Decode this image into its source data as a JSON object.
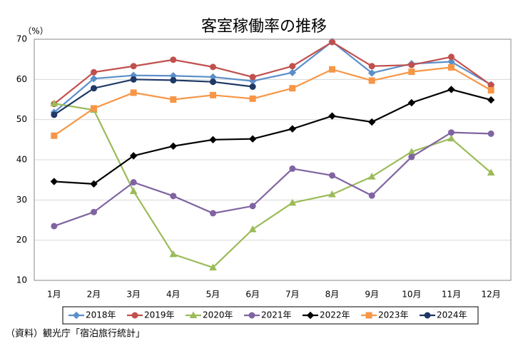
{
  "chart_data": {
    "type": "line",
    "title": "客室稼働率の推移",
    "y_unit": "（%）",
    "source": "（資料）観光庁「宿泊旅行統計」",
    "categories": [
      "1月",
      "2月",
      "3月",
      "4月",
      "5月",
      "6月",
      "7月",
      "8月",
      "9月",
      "10月",
      "11月",
      "12月"
    ],
    "ylim": [
      10,
      70
    ],
    "yticks": [
      10,
      20,
      30,
      40,
      50,
      60,
      70
    ],
    "grid": true,
    "legend": "bottom",
    "series": [
      {
        "name": "2018年",
        "color": "#5b8fc9",
        "marker": "diamond",
        "values": [
          51.8,
          60.2,
          61.0,
          60.9,
          60.6,
          59.6,
          61.7,
          69.4,
          61.6,
          63.9,
          64.4,
          58.7
        ]
      },
      {
        "name": "2019年",
        "color": "#c0504d",
        "marker": "circle",
        "values": [
          53.9,
          61.8,
          63.3,
          64.9,
          63.1,
          60.6,
          63.3,
          69.3,
          63.3,
          63.6,
          65.6,
          58.6
        ]
      },
      {
        "name": "2020年",
        "color": "#9bbb59",
        "marker": "triangle",
        "values": [
          54.0,
          52.4,
          32.2,
          16.5,
          13.2,
          22.7,
          29.3,
          31.4,
          35.8,
          42.0,
          45.3,
          36.8
        ]
      },
      {
        "name": "2021年",
        "color": "#8064a2",
        "marker": "circle",
        "values": [
          23.5,
          27.0,
          34.4,
          31.0,
          26.7,
          28.5,
          37.8,
          36.1,
          31.1,
          40.7,
          46.8,
          46.5
        ]
      },
      {
        "name": "2022年",
        "color": "#000000",
        "marker": "diamond",
        "values": [
          34.6,
          34.0,
          41.0,
          43.4,
          45.0,
          45.2,
          47.7,
          50.9,
          49.4,
          54.2,
          57.5,
          54.9
        ]
      },
      {
        "name": "2023年",
        "color": "#f79646",
        "marker": "square",
        "values": [
          46.0,
          52.8,
          56.7,
          55.0,
          56.1,
          55.2,
          57.8,
          62.5,
          59.7,
          61.9,
          63.0,
          57.3
        ]
      },
      {
        "name": "2024年",
        "color": "#1f3864",
        "marker": "circle",
        "values": [
          51.2,
          57.8,
          60.0,
          59.8,
          59.4,
          58.2,
          null,
          null,
          null,
          null,
          null,
          null
        ]
      }
    ]
  }
}
